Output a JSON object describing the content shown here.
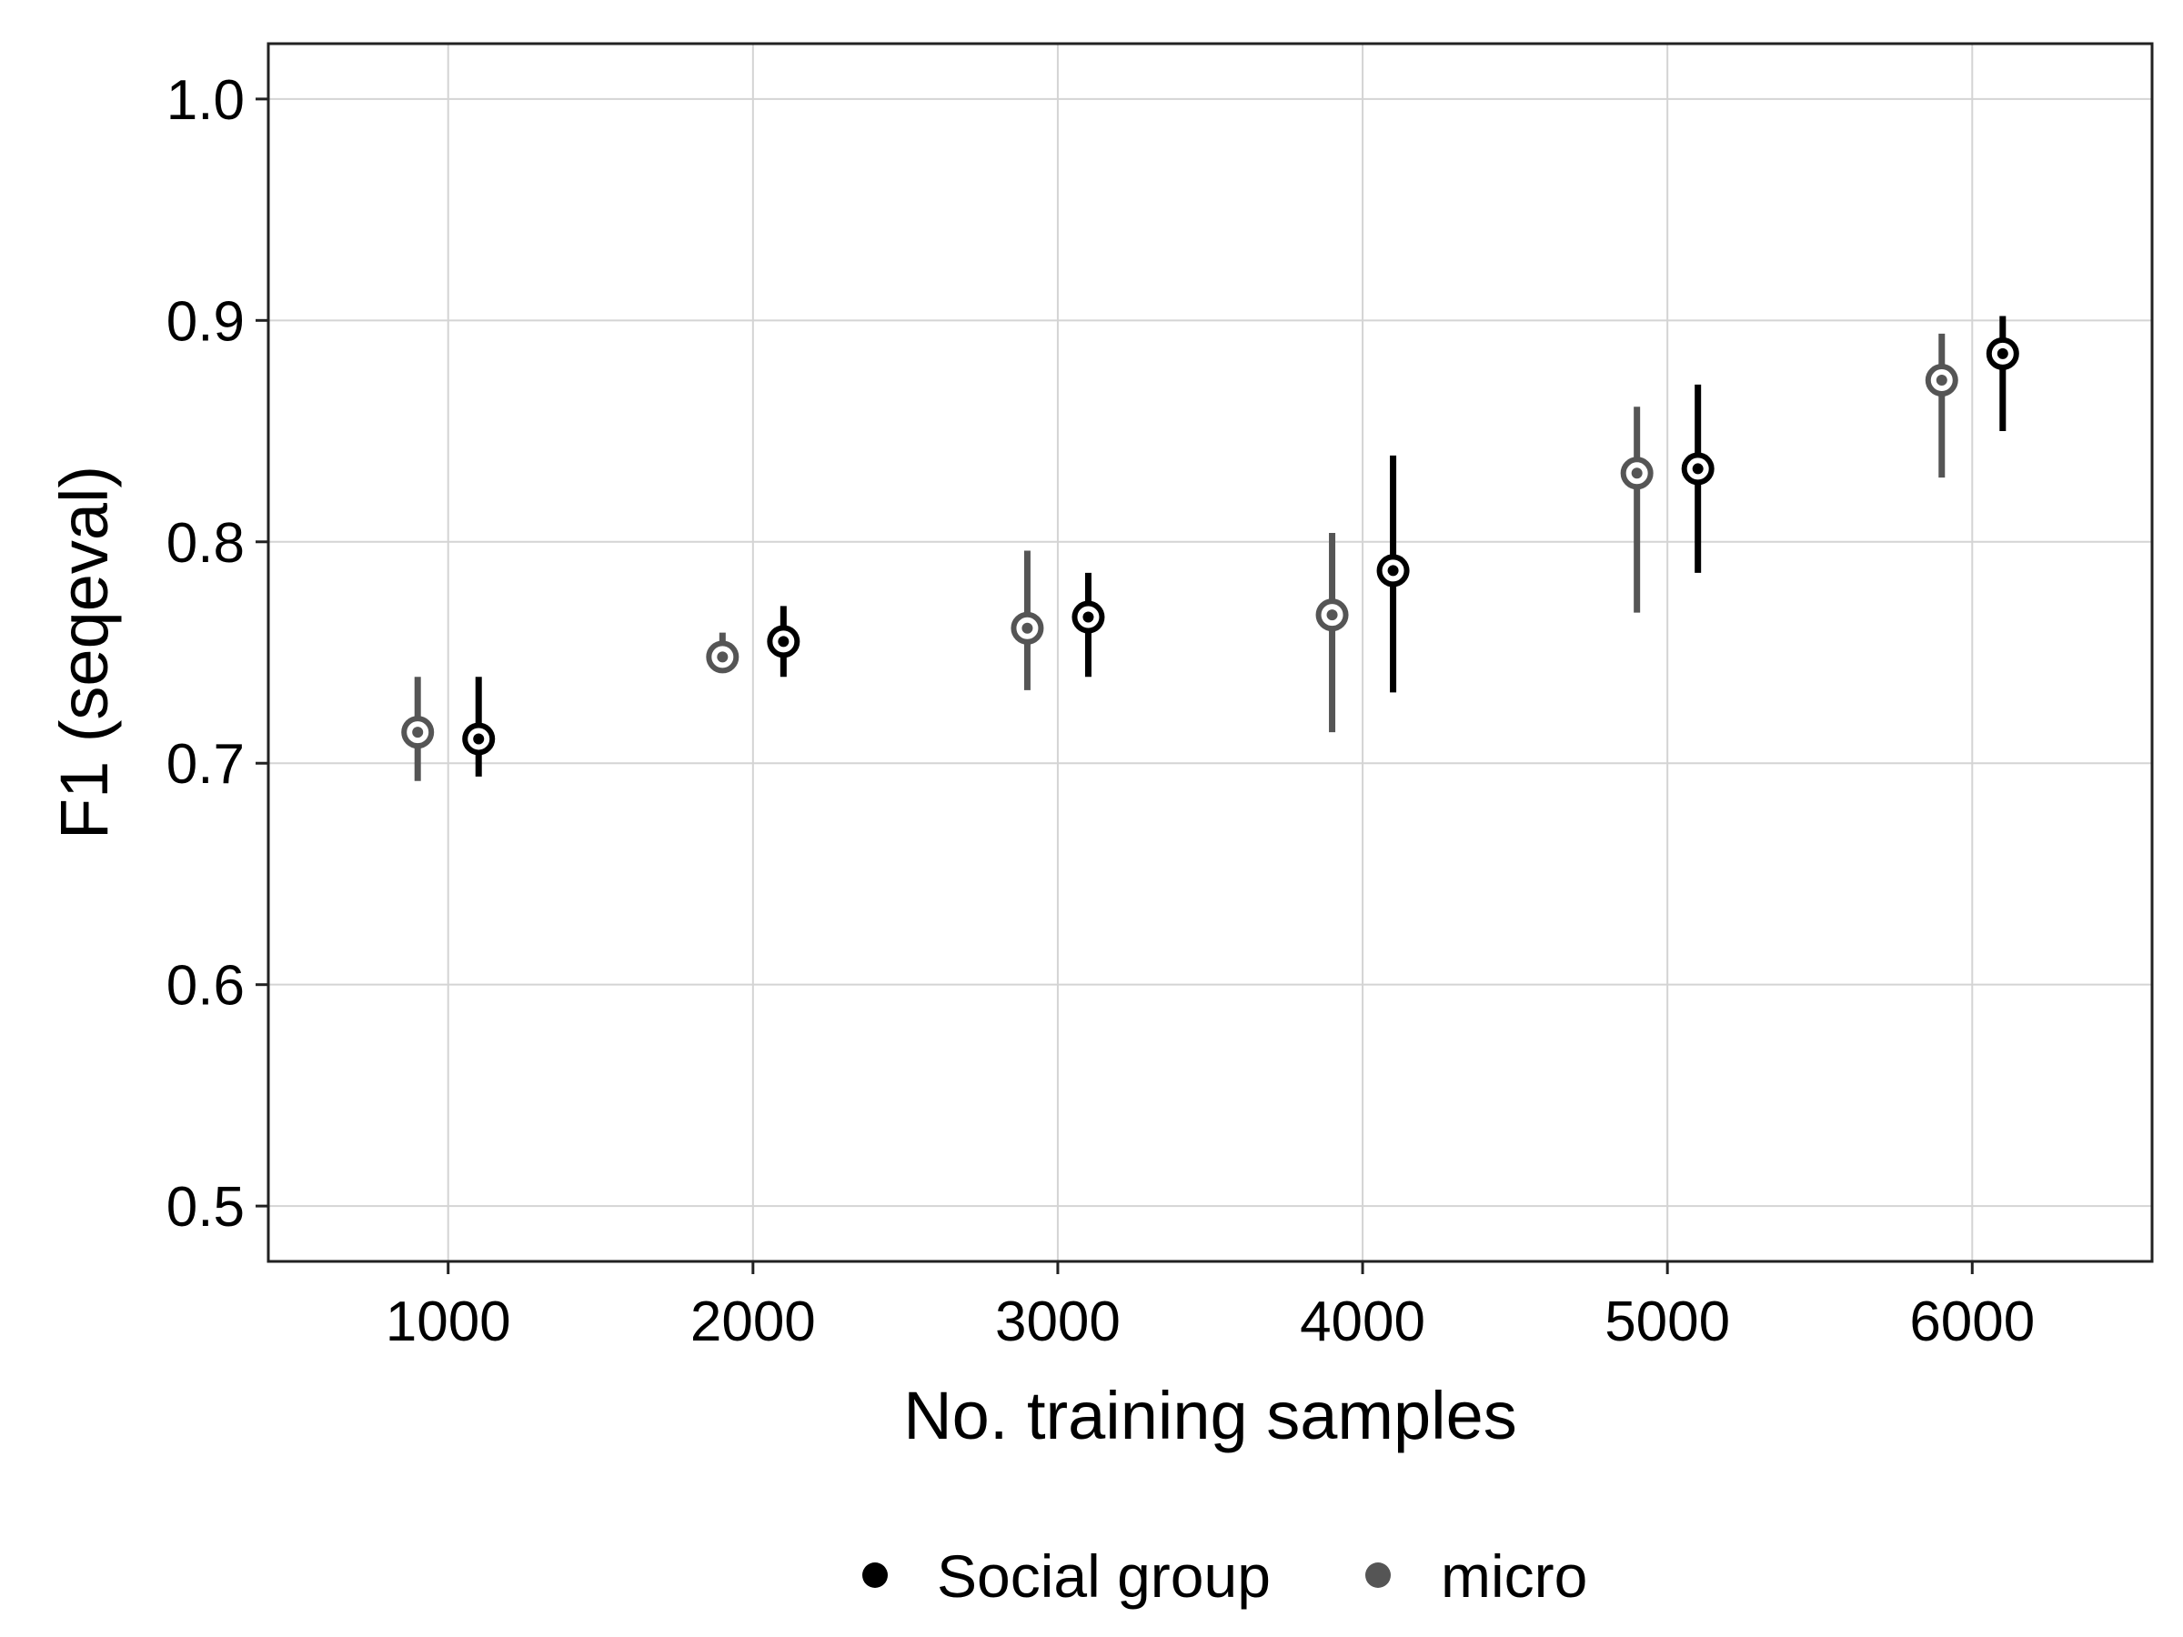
{
  "chart_data": {
    "type": "scatter",
    "xlabel": "No. training samples",
    "ylabel": "F1 (seqeval)",
    "xlim": [
      410,
      6590
    ],
    "ylim": [
      0.475,
      1.025
    ],
    "x_ticks": [
      1000,
      2000,
      3000,
      4000,
      5000,
      6000
    ],
    "x_tick_labels": [
      "1000",
      "2000",
      "3000",
      "4000",
      "5000",
      "6000"
    ],
    "y_ticks": [
      0.5,
      0.6,
      0.7,
      0.8,
      0.9,
      1.0
    ],
    "y_tick_labels": [
      "0.5",
      "0.6",
      "0.7",
      "0.8",
      "0.9",
      "1.0"
    ],
    "grid": true,
    "legend_position": "bottom",
    "series": [
      {
        "name": "Social group",
        "color": "#000000",
        "x": [
          1000,
          2000,
          3000,
          4000,
          5000,
          6000
        ],
        "y": [
          0.711,
          0.755,
          0.766,
          0.787,
          0.833,
          0.885
        ],
        "y_low": [
          0.694,
          0.739,
          0.739,
          0.732,
          0.786,
          0.85
        ],
        "y_high": [
          0.739,
          0.771,
          0.786,
          0.839,
          0.871,
          0.902
        ]
      },
      {
        "name": "micro",
        "color": "#555555",
        "x": [
          1000,
          2000,
          3000,
          4000,
          5000,
          6000
        ],
        "y": [
          0.714,
          0.748,
          0.761,
          0.767,
          0.831,
          0.873
        ],
        "y_low": [
          0.692,
          0.741,
          0.733,
          0.714,
          0.768,
          0.829
        ],
        "y_high": [
          0.739,
          0.759,
          0.796,
          0.804,
          0.861,
          0.894
        ]
      }
    ]
  }
}
